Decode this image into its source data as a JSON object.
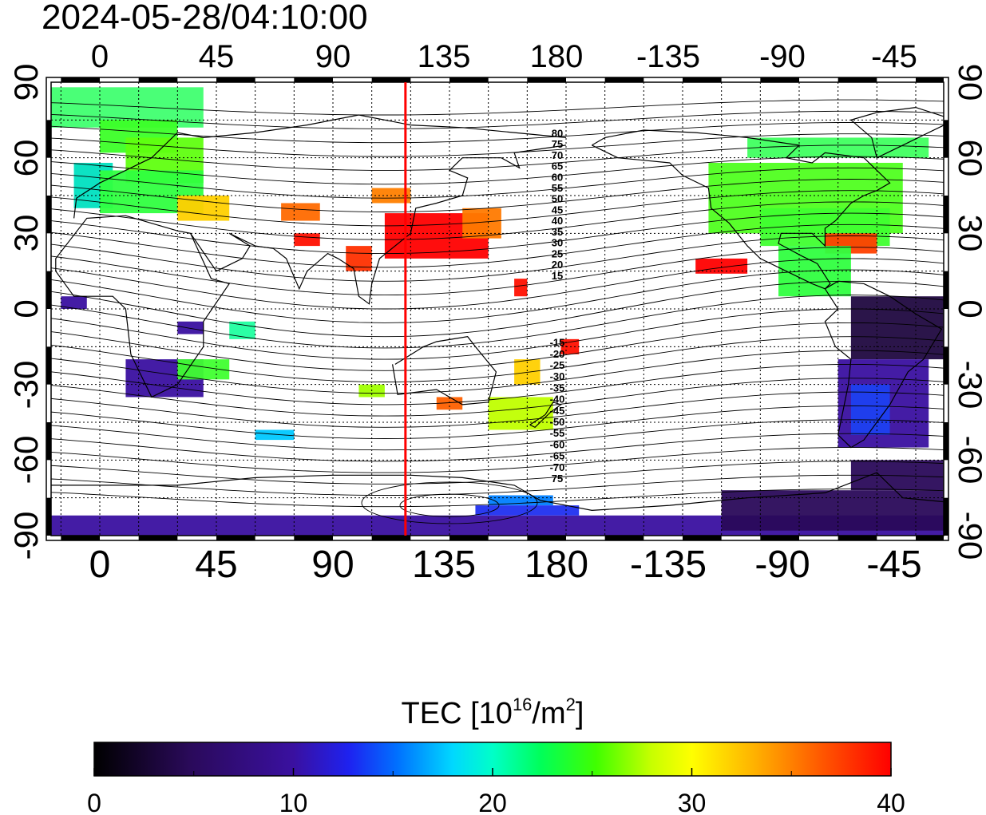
{
  "title": "2024-05-28/04:10:00",
  "map": {
    "x_ticks": [
      "0",
      "45",
      "90",
      "135",
      "180",
      "-135",
      "-90",
      "-45"
    ],
    "y_ticks": [
      "90",
      "60",
      "30",
      "0",
      "-30",
      "-60",
      "-90"
    ],
    "red_line_longitude": 118,
    "contour_labels_north": [
      "80",
      "75",
      "70",
      "65",
      "60",
      "55",
      "50",
      "45",
      "40",
      "35",
      "30",
      "25",
      "20",
      "15"
    ],
    "contour_labels_south": [
      "-15",
      "-20",
      "-25",
      "-30",
      "-35",
      "-40",
      "-45",
      "-50",
      "-55",
      "-60",
      "-65",
      "-70",
      "75"
    ]
  },
  "colorbar": {
    "label_prefix": "TEC  [10",
    "label_exp": "16",
    "label_mid": "/m",
    "label_exp2": "2",
    "label_suffix": "]",
    "ticks": [
      "0",
      "10",
      "20",
      "30",
      "40"
    ],
    "min": 0,
    "max": 40
  },
  "colors": {
    "red_line": "#ff0000",
    "land_outline": "#000000"
  }
}
